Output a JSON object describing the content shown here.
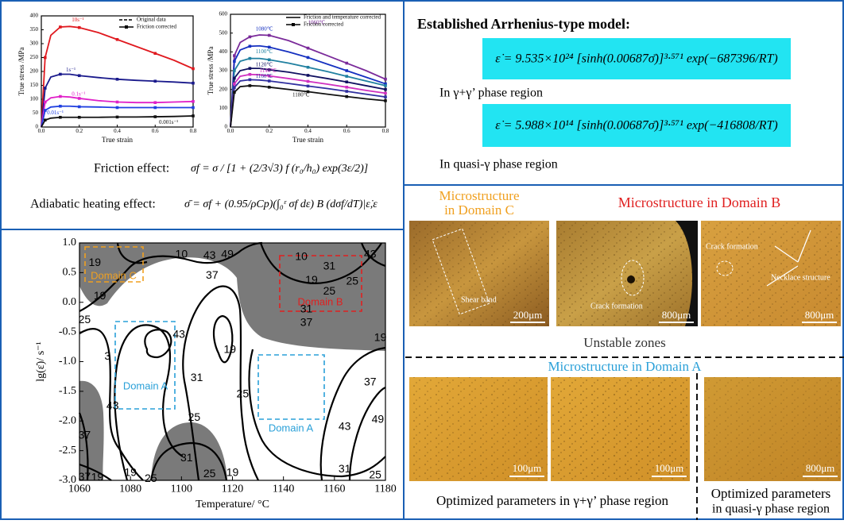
{
  "chart_data": [
    {
      "type": "line",
      "xlabel": "True strain",
      "ylabel": "True stress /MPa",
      "xlim": [
        0,
        0.8
      ],
      "xticks": [
        {
          "value": 0,
          "label": "0.0"
        },
        0.2,
        0.4,
        0.6,
        0.8
      ],
      "ylim": [
        0,
        400
      ],
      "yticks": [
        0,
        50,
        100,
        150,
        200,
        250,
        300,
        350,
        400
      ],
      "legend": [
        "Original data",
        "Friction corrected"
      ],
      "x": [
        0,
        0.02,
        0.05,
        0.1,
        0.15,
        0.2,
        0.3,
        0.4,
        0.5,
        0.6,
        0.7,
        0.8
      ],
      "series": [
        {
          "name": "10s⁻¹",
          "color": "#e0191f",
          "values": [
            0,
            250,
            330,
            360,
            362,
            358,
            340,
            315,
            290,
            265,
            240,
            210
          ]
        },
        {
          "name": "1s⁻¹",
          "color": "#1a1a8c",
          "values": [
            0,
            140,
            180,
            190,
            190,
            185,
            178,
            172,
            168,
            165,
            162,
            158
          ]
        },
        {
          "name": "0.1s⁻¹",
          "color": "#e020c8",
          "values": [
            0,
            90,
            105,
            110,
            108,
            103,
            95,
            90,
            88,
            88,
            90,
            92
          ]
        },
        {
          "name": "0.01s⁻¹",
          "color": "#2040e0",
          "values": [
            0,
            60,
            72,
            75,
            75,
            73,
            72,
            70,
            70,
            70,
            70,
            70
          ]
        },
        {
          "name": "0.001s⁻¹",
          "color": "#111111",
          "values": [
            0,
            25,
            32,
            35,
            35,
            35,
            35,
            36,
            36,
            37,
            38,
            40
          ]
        }
      ]
    },
    {
      "type": "line",
      "xlabel": "True strain",
      "ylabel": "True stress /MPa",
      "xlim": [
        0,
        0.8
      ],
      "xticks": [
        {
          "value": 0,
          "label": "0.0"
        },
        0.2,
        0.4,
        0.6,
        0.8
      ],
      "ylim": [
        0,
        600
      ],
      "yticks": [
        0,
        100,
        200,
        300,
        400,
        500,
        600
      ],
      "legend": [
        "Friction and temperature corrected",
        "Friction corrected"
      ],
      "x": [
        0,
        0.02,
        0.05,
        0.1,
        0.15,
        0.2,
        0.3,
        0.4,
        0.5,
        0.6,
        0.7,
        0.8
      ],
      "series": [
        {
          "name": "1060℃",
          "color": "#7a2a9a",
          "values": [
            0,
            380,
            450,
            480,
            490,
            488,
            460,
            420,
            380,
            340,
            300,
            255
          ]
        },
        {
          "name": "1080℃",
          "color": "#1530c0",
          "values": [
            0,
            350,
            410,
            430,
            432,
            425,
            400,
            370,
            335,
            300,
            265,
            230
          ]
        },
        {
          "name": "1100℃",
          "color": "#2080a0",
          "values": [
            0,
            300,
            350,
            365,
            365,
            358,
            340,
            318,
            295,
            270,
            245,
            220
          ]
        },
        {
          "name": "1120℃",
          "color": "#101060",
          "values": [
            0,
            260,
            300,
            312,
            312,
            305,
            292,
            275,
            258,
            240,
            220,
            200
          ]
        },
        {
          "name": "1140℃",
          "color": "#d030c0",
          "values": [
            0,
            230,
            270,
            280,
            278,
            272,
            258,
            243,
            228,
            212,
            195,
            180
          ]
        },
        {
          "name": "1160℃",
          "color": "#3030a0",
          "values": [
            0,
            210,
            245,
            252,
            250,
            245,
            232,
            218,
            205,
            190,
            175,
            160
          ]
        },
        {
          "name": "1180℃",
          "color": "#111111",
          "values": [
            0,
            185,
            215,
            220,
            218,
            212,
            200,
            188,
            175,
            162,
            150,
            140
          ]
        }
      ]
    },
    {
      "type": "contour",
      "xlabel": "Temperature/ °C",
      "ylabel": "lg(ε̇)/ s⁻¹",
      "xlim": [
        1060,
        1180
      ],
      "xticks": [
        1060,
        1080,
        1100,
        1120,
        1140,
        1160,
        1180
      ],
      "ylim": [
        -3,
        1
      ],
      "yticks": [
        {
          "value": 1,
          "label": "1.0"
        },
        0.5,
        {
          "value": 0,
          "label": "0.0"
        },
        -0.5,
        {
          "value": -1,
          "label": "-1.0"
        },
        -1.5,
        {
          "value": -2,
          "label": "-2.0"
        },
        -2.5,
        {
          "value": -3,
          "label": "-3.0"
        }
      ],
      "contour_labels": [
        19,
        10,
        43,
        49,
        37,
        19,
        25,
        43,
        3,
        19,
        31,
        25,
        25,
        43,
        37,
        10,
        19,
        31,
        43,
        25,
        31,
        37,
        25,
        19,
        37,
        43,
        49,
        31,
        25,
        19,
        19,
        37,
        19,
        25,
        31,
        25
      ],
      "domains": [
        "Domain C",
        "Domain B",
        "Domain A",
        "Domain A"
      ]
    }
  ],
  "friction_effect": {
    "label": "Friction effect:",
    "formula": "σf = σ / [1 + (2/3√3) f (r₀/h₀) exp(3ε/2)]"
  },
  "adiabatic_effect": {
    "label": "Adiabatic heating effect:",
    "formula": "σ̄ = σf + (0.95/ρCp)(∫₀ᵋ σf dε) B (dσf/dT)|ε̇,ε"
  },
  "arrhenius": {
    "title": "Established Arrhenius-type model:",
    "equations": [
      {
        "formula": "ε̇ = 9.535×10²⁴ [sinh(0.00687σ̄)]³·⁵⁷¹ exp(−687396/RT)",
        "region": "In γ+γ’ phase region"
      },
      {
        "formula": "ε̇ = 5.988×10¹⁴ [sinh(0.00687σ̄)]³·⁵⁷¹ exp(−416808/RT)",
        "region": "In quasi-γ phase region"
      }
    ]
  },
  "microstructure": {
    "domain_c_title": [
      "Microstructure",
      "in Domain C"
    ],
    "domain_b_title": "Microstructure in Domain B",
    "unstable": "Unstable zones",
    "domain_a_title": "Microstructure in Domain A",
    "images": [
      {
        "annotations": [
          "Shear band"
        ],
        "scale": "200μm"
      },
      {
        "annotations": [
          "Crack formation"
        ],
        "scale": "800μm"
      },
      {
        "annotations": [
          "Crack formation",
          "Necklace structure"
        ],
        "scale": "800μm"
      },
      {
        "scale": "100μm"
      },
      {
        "scale": "100μm"
      },
      {
        "scale": "800μm"
      }
    ],
    "captions": [
      "Optimized parameters in  γ+γ’ phase region",
      [
        "Optimized parameters",
        "in quasi-γ phase region"
      ]
    ]
  }
}
